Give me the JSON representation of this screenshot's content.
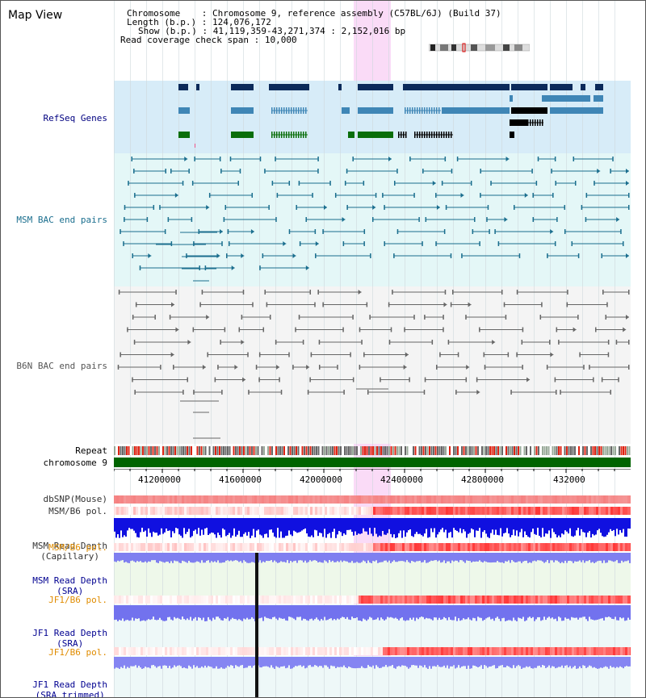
{
  "app": {
    "title": "Map View"
  },
  "info": {
    "chromosome_key": "Chromosome",
    "chromosome_val": "Chromosome 9, reference assembly (C57BL/6J) (Build 37)",
    "length_key": "Length (b.p.)",
    "length_val": "124,076,172",
    "show_key": "Show (b.p.)",
    "show_val": "41,119,359-43,271,374 : 2,152,016 bp",
    "coverage_key": "Read coverage check span",
    "coverage_val": "10,000"
  },
  "tracks": {
    "refseq": {
      "label": "RefSeq Genes",
      "color": "#000080"
    },
    "msm_bac": {
      "label": "MSM BAC end pairs",
      "color": "#1a6e8e"
    },
    "b6n_bac": {
      "label": "B6N BAC end pairs",
      "color": "#555555"
    },
    "repeat": {
      "label": "Repeat"
    },
    "chromosome": {
      "label": "chromosome 9"
    },
    "dbsnp": {
      "label": "dbSNP(Mouse)"
    },
    "msm_b6_pol": {
      "label": "MSM/B6 pol."
    },
    "msm_depth_cap": {
      "label1": "MSM Read Depth",
      "label2": "(Capillary)"
    },
    "msm_b6_pol2": {
      "label": "MSM/B6 pol.",
      "color": "#e08c00"
    },
    "msm_depth_sra": {
      "label1": "MSM Read Depth",
      "label2": "(SRA)",
      "color": "#000090"
    },
    "jf1_b6_pol": {
      "label": "JF1/B6 pol.",
      "color": "#e08c00"
    },
    "jf1_depth_sra": {
      "label1": "JF1 Read Depth",
      "label2": "(SRA)",
      "color": "#000090"
    },
    "jf1_b6_pol2": {
      "label": "JF1/B6 pol.",
      "color": "#e08c00"
    },
    "jf1_depth_trim": {
      "label1": "JF1 Read Depth",
      "label2": "(SRA trimmed)",
      "color": "#000090"
    }
  },
  "axis": {
    "ticks": [
      "41200000",
      "41600000",
      "42000000",
      "42400000",
      "42800000",
      "432000"
    ]
  }
}
